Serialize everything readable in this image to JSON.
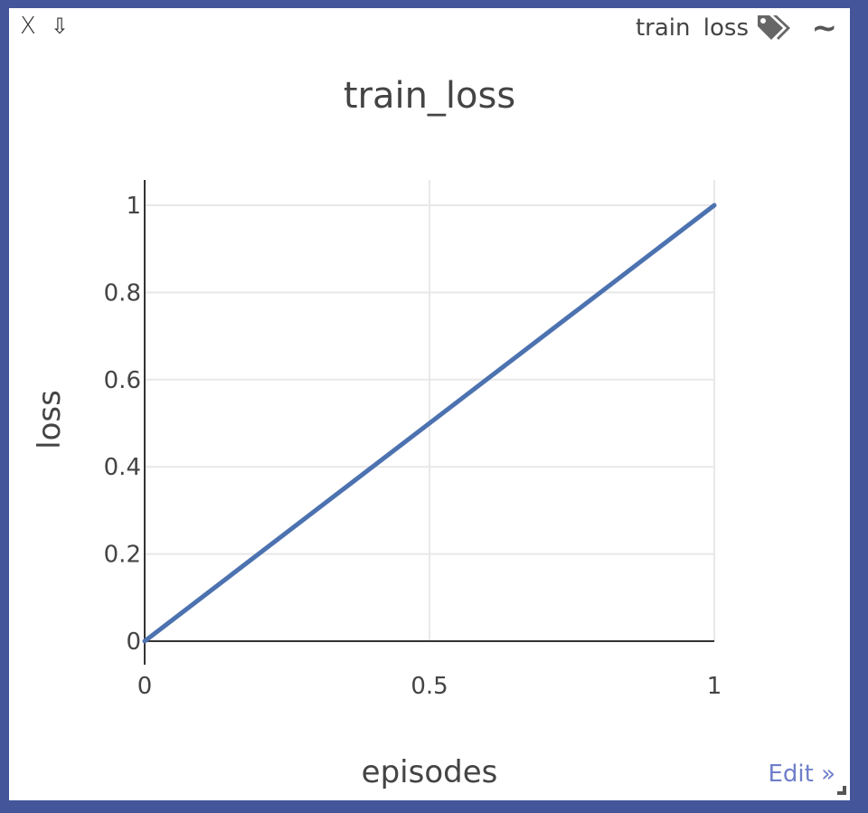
{
  "window": {
    "close_label": "X",
    "download_label": "⇩",
    "env_title": "train loss",
    "smooth_label": "~",
    "edit_label": "Edit »"
  },
  "icons": {
    "close": "close-icon",
    "download": "download-icon",
    "tag": "tag-icon",
    "smooth": "smooth-icon",
    "resize": "resize-icon"
  },
  "colors": {
    "border": "#44559a",
    "line": "#4c72b0",
    "grid": "#e8e8e8",
    "axis": "#333333",
    "text": "#444444",
    "link": "#6f7fc9"
  },
  "chart_data": {
    "type": "line",
    "title": "train_loss",
    "xlabel": "episodes",
    "ylabel": "loss",
    "xlim": [
      0,
      1
    ],
    "ylim": [
      0,
      1
    ],
    "xticks": [
      0,
      0.5,
      1
    ],
    "xtick_labels": [
      "0",
      "0.5",
      "1"
    ],
    "yticks": [
      0,
      0.2,
      0.4,
      0.6,
      0.8,
      1
    ],
    "ytick_labels": [
      "0",
      "0.2",
      "0.4",
      "0.6",
      "0.8",
      "1"
    ],
    "grid": true,
    "legend": false,
    "series": [
      {
        "x": [
          0,
          1
        ],
        "y": [
          0,
          1
        ]
      }
    ]
  }
}
